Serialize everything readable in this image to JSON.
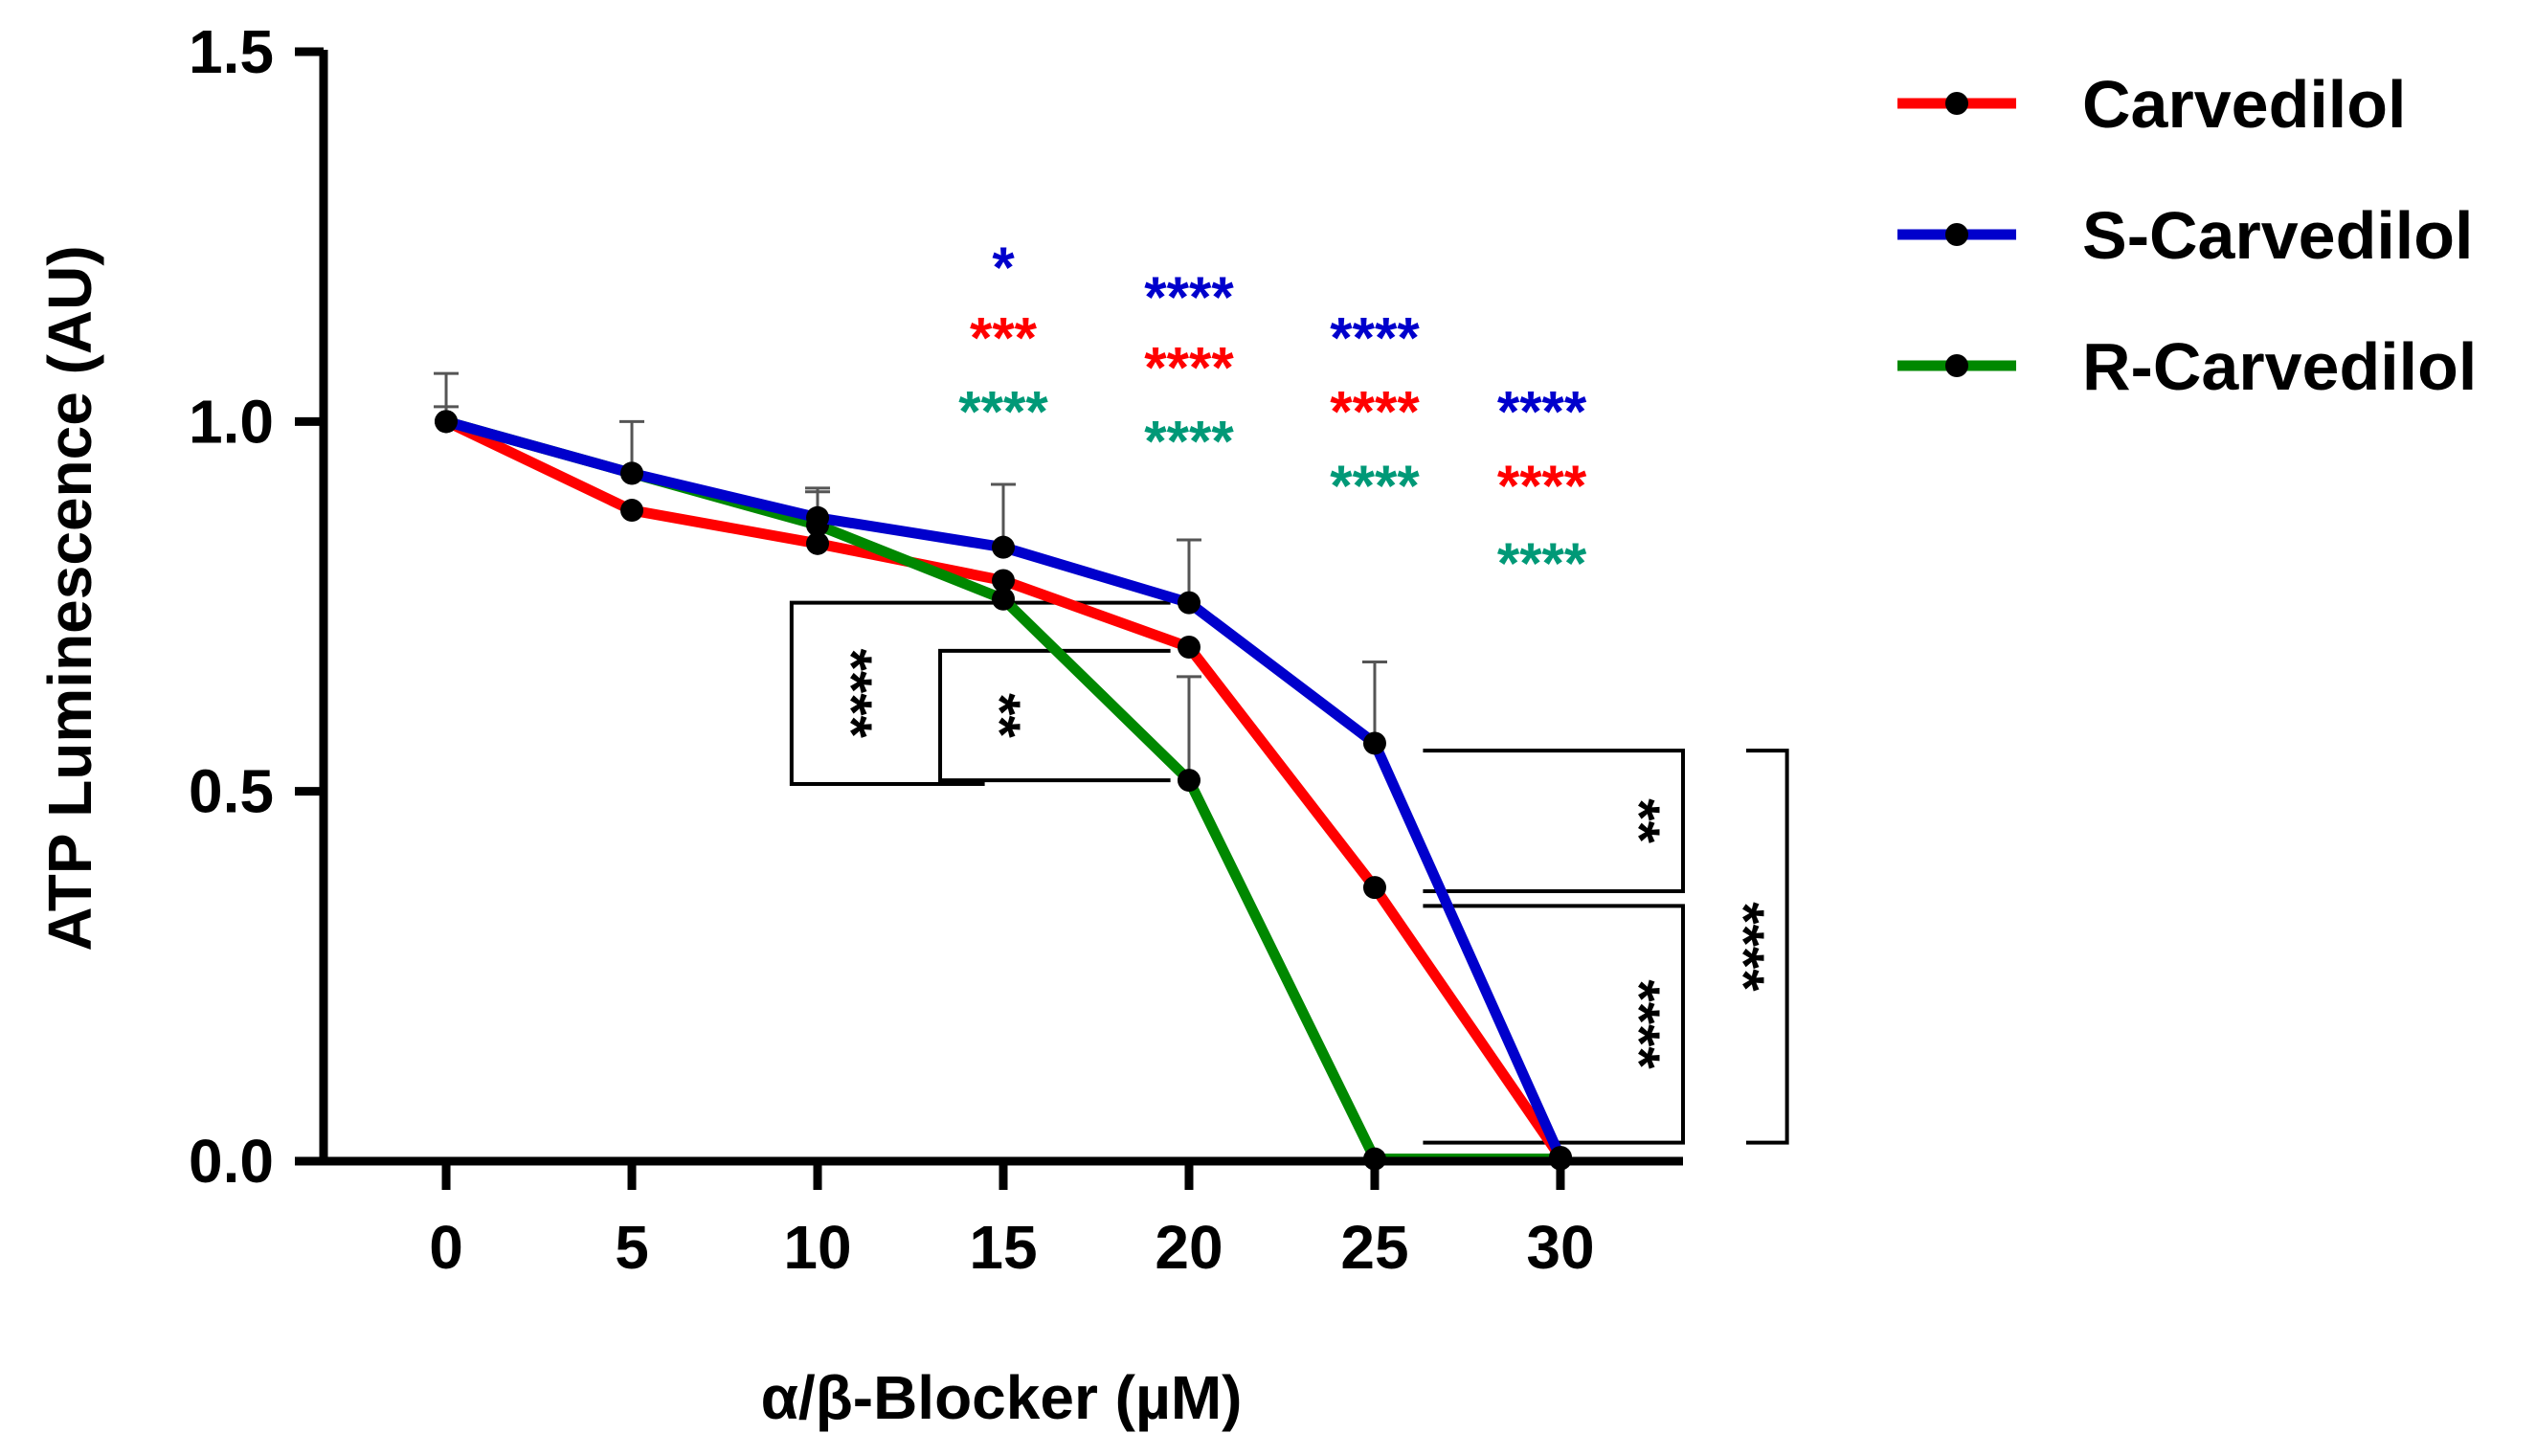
{
  "chart_data": {
    "type": "line",
    "title": "",
    "xlabel": "α/β-Blocker (µM)",
    "ylabel": "ATP Luminescence (AU)",
    "x": [
      0,
      5,
      10,
      15,
      20,
      25,
      30
    ],
    "x_tick_labels": [
      "0",
      "5",
      "10",
      "15",
      "20",
      "25",
      "30"
    ],
    "xlim": [
      -3.3,
      33.3
    ],
    "ylim": [
      0,
      1.5
    ],
    "y_ticks": [
      0.0,
      0.5,
      1.0,
      1.5
    ],
    "y_tick_labels": [
      "0.0",
      "0.5",
      "1.0",
      "1.5"
    ],
    "grid": false,
    "legend_position": "top-right, outside plot",
    "series": [
      {
        "name": "Carvedilol",
        "color": "#ff0000",
        "values": [
          1.0,
          0.88,
          0.835,
          0.785,
          0.695,
          0.37,
          0.005
        ],
        "errors": [
          0.02,
          0.0,
          0.0,
          0.0,
          0.0,
          0.0,
          0.0
        ]
      },
      {
        "name": "S-Carvedilol",
        "color": "#0000cc",
        "values": [
          1.0,
          0.93,
          0.87,
          0.83,
          0.755,
          0.565,
          0.005
        ],
        "errors": [
          0.065,
          0.07,
          0.04,
          0.085,
          0.085,
          0.11,
          0.0
        ]
      },
      {
        "name": "R-Carvedilol",
        "color": "#008800",
        "values": [
          1.0,
          0.93,
          0.86,
          0.76,
          0.515,
          0.003,
          0.003
        ],
        "errors": [
          0.0,
          0.0,
          0.045,
          0.0,
          0.14,
          0.0,
          0.0
        ]
      }
    ],
    "significance_labels": [
      {
        "x": 15,
        "y": 1.21,
        "text": "*",
        "color": "#0000cc"
      },
      {
        "x": 15,
        "y": 1.115,
        "text": "***",
        "color": "#ff0000"
      },
      {
        "x": 15,
        "y": 1.015,
        "text": "****",
        "color": "#009977"
      },
      {
        "x": 20,
        "y": 1.17,
        "text": "****",
        "color": "#0000cc"
      },
      {
        "x": 20,
        "y": 1.075,
        "text": "****",
        "color": "#ff0000"
      },
      {
        "x": 20,
        "y": 0.975,
        "text": "****",
        "color": "#009977"
      },
      {
        "x": 25,
        "y": 1.115,
        "text": "****",
        "color": "#0000cc"
      },
      {
        "x": 25,
        "y": 1.015,
        "text": "****",
        "color": "#ff0000"
      },
      {
        "x": 25,
        "y": 0.915,
        "text": "****",
        "color": "#009977"
      },
      {
        "x": 29.5,
        "y": 1.015,
        "text": "****",
        "color": "#0000cc"
      },
      {
        "x": 29.5,
        "y": 0.915,
        "text": "****",
        "color": "#ff0000"
      },
      {
        "x": 29.5,
        "y": 0.81,
        "text": "****",
        "color": "#009977"
      }
    ],
    "comparison_brackets": [
      {
        "side": "left",
        "x_label": 9.3,
        "x_end_top": 19.5,
        "x_end_bottom": 14.5,
        "y_top": 0.755,
        "y_bottom": 0.51,
        "text": "****"
      },
      {
        "side": "left",
        "x_label": 13.3,
        "x_end_top": 19.5,
        "x_end_bottom": 19.5,
        "y_top": 0.69,
        "y_bottom": 0.515,
        "text": "**"
      },
      {
        "side": "right",
        "x_label": 33.3,
        "x_end_top": 26.3,
        "x_end_bottom": 26.3,
        "y_top": 0.555,
        "y_bottom": 0.365,
        "text": "**"
      },
      {
        "side": "right",
        "x_label": 33.3,
        "x_end_top": 26.3,
        "x_end_bottom": 26.3,
        "y_top": 0.345,
        "y_bottom": 0.025,
        "text": "****"
      },
      {
        "side": "right",
        "x_label": 36.1,
        "x_end_top": 35.0,
        "x_end_bottom": 35.0,
        "y_top": 0.555,
        "y_bottom": 0.025,
        "text": "****"
      }
    ]
  }
}
